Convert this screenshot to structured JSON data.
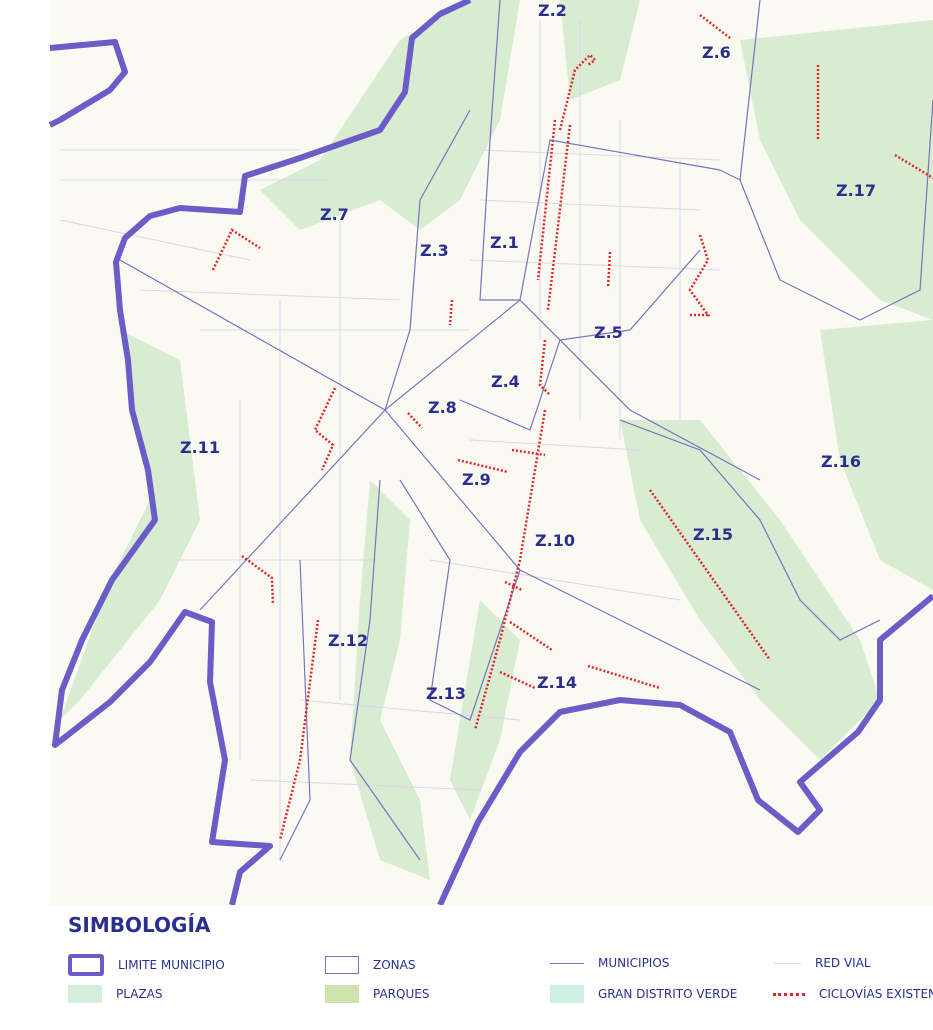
{
  "map": {
    "zones": [
      "Z.1",
      "Z.2",
      "Z.3",
      "Z.4",
      "Z.5",
      "Z.6",
      "Z.7",
      "Z.8",
      "Z.9",
      "Z.10",
      "Z.11",
      "Z.12",
      "Z.13",
      "Z.14",
      "Z.15",
      "Z.16",
      "Z.17"
    ],
    "colors": {
      "limite": "#6b5cc8",
      "zonas": "#7a72c0",
      "ciclovias": "#e0262b",
      "plazas": "#d3efdc",
      "parques": "#cfe3b0",
      "gran_distrito_verde": "#cdf0e0",
      "background": "#fbfaf2"
    }
  },
  "legend": {
    "title": "SIMBOLOGÍA",
    "items": [
      {
        "label": "LIMITE MUNICIPIO",
        "icon": "thick-purple-box"
      },
      {
        "label": "ZONAS",
        "icon": "thin-outline-box"
      },
      {
        "label": "MUNICIPIOS",
        "icon": "purple-line"
      },
      {
        "label": "RED VIAL",
        "icon": "light-line"
      },
      {
        "label": "PLAZAS",
        "icon": "light-green-square"
      },
      {
        "label": "PARQUES",
        "icon": "green-square"
      },
      {
        "label": "GRAN DISTRITO VERDE",
        "icon": "mint-square"
      },
      {
        "label": "CICLOVÍAS EXISTEN",
        "icon": "red-dashed-line"
      }
    ]
  }
}
